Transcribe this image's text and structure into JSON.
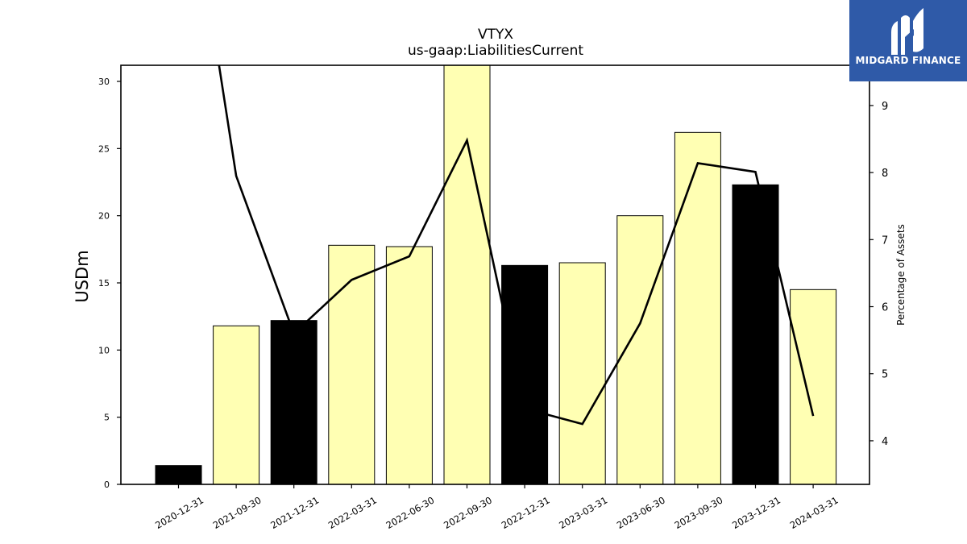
{
  "chart_data": {
    "type": "bar",
    "title": "VTYX",
    "subtitle": "us-gaap:LiabilitiesCurrent",
    "ylabel": "USDm",
    "y2label": "Percentage of Assets",
    "categories": [
      "2020-12-31",
      "2021-09-30",
      "2021-12-31",
      "2022-03-31",
      "2022-06-30",
      "2022-09-30",
      "2022-12-31",
      "2023-03-31",
      "2023-06-30",
      "2023-09-30",
      "2023-12-31",
      "2024-03-31"
    ],
    "series": [
      {
        "type": "bar",
        "values": [
          1.4,
          11.8,
          12.2,
          17.8,
          17.7,
          31.2,
          16.3,
          16.5,
          20.0,
          26.2,
          22.3,
          14.5
        ],
        "colors": [
          "#000000",
          "#ffffb3",
          "#000000",
          "#ffffb3",
          "#ffffb3",
          "#ffffb3",
          "#000000",
          "#ffffb3",
          "#ffffb3",
          "#ffffb3",
          "#000000",
          "#ffffb3"
        ]
      },
      {
        "type": "line",
        "axis": "right",
        "color": "#000000",
        "values": [
          13.5,
          7.95,
          5.6,
          6.4,
          6.75,
          8.48,
          4.48,
          4.25,
          5.75,
          8.14,
          8.01,
          4.37
        ]
      }
    ],
    "ylim": [
      0,
      31.2
    ],
    "y2lim": [
      3.35,
      9.6
    ],
    "yticks": [
      "0",
      "5",
      "10",
      "15",
      "20",
      "25",
      "30"
    ],
    "y2ticks": [
      "4",
      "5",
      "6",
      "7",
      "8",
      "9"
    ],
    "grid": false
  },
  "logo": {
    "text": "MIDGARD FINANCE"
  }
}
